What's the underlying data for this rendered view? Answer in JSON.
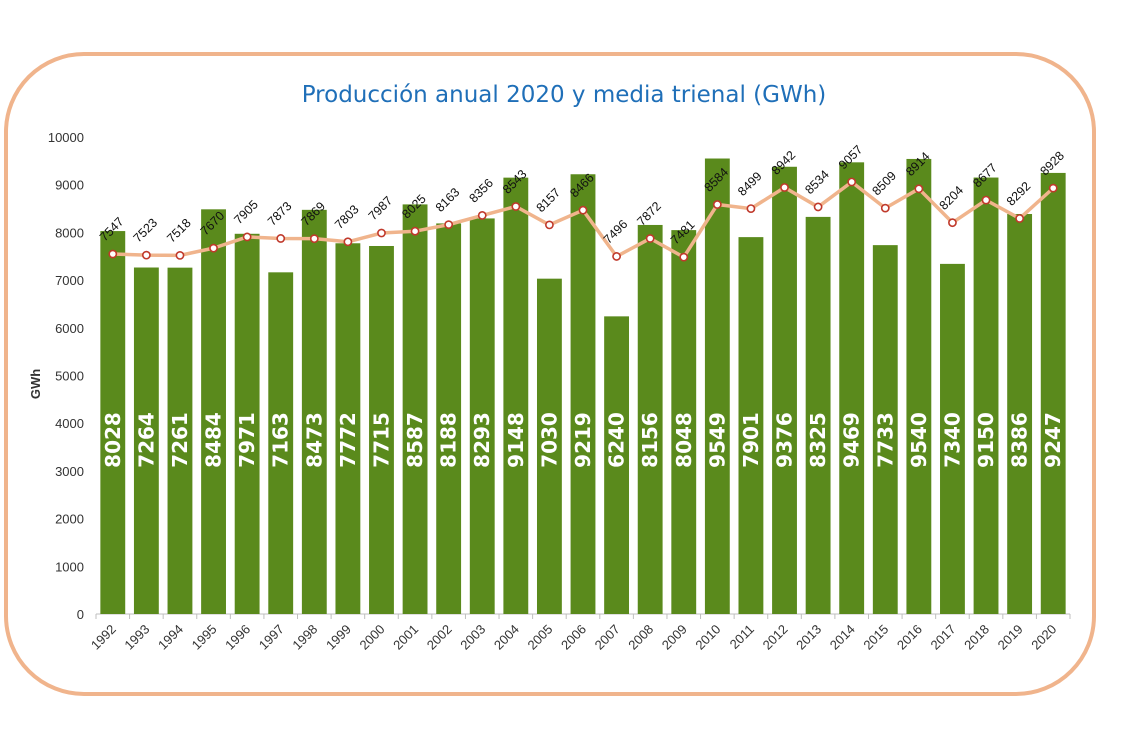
{
  "chart_data": {
    "type": "bar",
    "title": "Producción anual 2020 y media trienal (GWh)",
    "ylabel": "GWh",
    "xlabel": "",
    "ylim": [
      0,
      10000
    ],
    "yticks": [
      0,
      1000,
      2000,
      3000,
      4000,
      5000,
      6000,
      7000,
      8000,
      9000,
      10000
    ],
    "grid": false,
    "categories": [
      "1992",
      "1993",
      "1994",
      "1995",
      "1996",
      "1997",
      "1998",
      "1999",
      "2000",
      "2001",
      "2002",
      "2003",
      "2004",
      "2005",
      "2006",
      "2007",
      "2008",
      "2009",
      "2010",
      "2011",
      "2012",
      "2013",
      "2014",
      "2015",
      "2016",
      "2017",
      "2018",
      "2019",
      "2020"
    ],
    "series": [
      {
        "name": "Producción anual",
        "type": "bar",
        "color": "#5A8A1C",
        "values": [
          8028,
          7264,
          7261,
          8484,
          7971,
          7163,
          8473,
          7772,
          7715,
          8587,
          8188,
          8293,
          9148,
          7030,
          9219,
          6240,
          8156,
          8048,
          9549,
          7901,
          9376,
          8325,
          9469,
          7733,
          9540,
          7340,
          9150,
          8386,
          9247
        ]
      },
      {
        "name": "Media trienal",
        "type": "line",
        "color": "#F0B48C",
        "values": [
          7547,
          7523,
          7518,
          7670,
          7905,
          7873,
          7869,
          7803,
          7987,
          8025,
          8163,
          8356,
          8543,
          8157,
          8466,
          7496,
          7872,
          7481,
          8584,
          8499,
          8942,
          8534,
          9057,
          8509,
          8914,
          8204,
          8677,
          8292,
          8928
        ]
      }
    ]
  },
  "colors": {
    "frame": "#F0B48C",
    "title": "#1F6FB8",
    "bar": "#5A8A1C",
    "line": "#F0B48C",
    "marker_fill": "#ffffff",
    "marker_stroke": "#C0392B"
  }
}
